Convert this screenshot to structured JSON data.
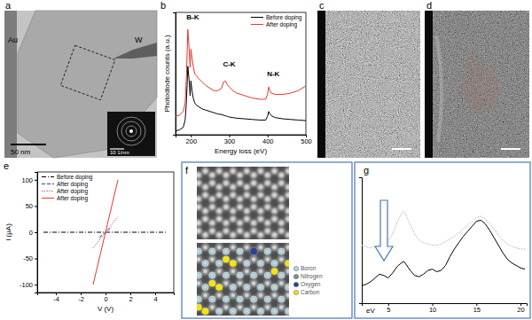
{
  "chart_data": [
    {
      "panel": "b",
      "type": "line",
      "xlabel": "Energy loss (eV)",
      "ylabel": "Photodiode counts (a.u.)",
      "xlim": [
        160,
        500
      ],
      "ylim": [
        0,
        10
      ],
      "xticks": [
        200,
        300,
        400,
        500
      ],
      "tick_labels": "x",
      "legend": "top-right",
      "grid": false,
      "x": [
        160,
        170,
        180,
        185,
        188,
        190,
        192,
        195,
        198,
        200,
        203,
        206,
        210,
        215,
        220,
        230,
        240,
        250,
        260,
        270,
        280,
        285,
        290,
        295,
        300,
        310,
        320,
        340,
        360,
        380,
        395,
        400,
        403,
        406,
        410,
        420,
        440,
        460,
        480,
        500
      ],
      "series": [
        {
          "name": "Before doping",
          "color": "#000000",
          "line_style": "solid",
          "values": [
            0.3,
            0.4,
            0.6,
            1.2,
            2.5,
            4.0,
            5.6,
            4.6,
            3.2,
            4.4,
            3.6,
            3.0,
            2.6,
            2.4,
            2.3,
            2.1,
            2.0,
            1.9,
            1.8,
            1.7,
            1.65,
            1.6,
            1.55,
            1.5,
            1.45,
            1.4,
            1.35,
            1.3,
            1.25,
            1.2,
            1.2,
            1.5,
            1.9,
            1.7,
            1.55,
            1.4,
            1.3,
            1.25,
            1.2,
            1.15
          ]
        },
        {
          "name": "After doping",
          "color": "#e8352b",
          "line_style": "solid",
          "values": [
            1.5,
            1.6,
            1.9,
            2.6,
            4.5,
            6.5,
            8.6,
            7.2,
            5.5,
            7.0,
            6.3,
            5.6,
            5.0,
            4.8,
            4.6,
            4.3,
            4.0,
            3.8,
            3.6,
            3.6,
            3.8,
            4.3,
            4.4,
            4.1,
            3.9,
            3.6,
            3.4,
            3.2,
            3.0,
            2.9,
            2.9,
            3.3,
            3.9,
            3.6,
            3.4,
            3.3,
            3.3,
            3.4,
            3.6,
            4.0
          ]
        }
      ],
      "annotations": [
        {
          "text": "B-K",
          "x": 205,
          "y": 9.4
        },
        {
          "text": "C-K",
          "x": 300,
          "y": 5.6
        },
        {
          "text": "N-K",
          "x": 415,
          "y": 4.8
        }
      ]
    },
    {
      "panel": "e",
      "type": "line",
      "xlabel": "V (V)",
      "ylabel": "I (μA)",
      "xlim": [
        -5.5,
        5.5
      ],
      "ylim": [
        -115,
        115
      ],
      "xticks": [
        -4,
        -2,
        0,
        2,
        4
      ],
      "yticks": [
        -100,
        -50,
        0,
        50,
        100
      ],
      "legend": "top-left",
      "grid": false,
      "series": [
        {
          "name": "Before doping",
          "color": "#000000",
          "line_style": "dashdot",
          "x": [
            -5,
            5
          ],
          "values": [
            0,
            0
          ]
        },
        {
          "name": "After doping",
          "color": "#3a3aa8",
          "line_style": "dashed",
          "x": [
            -0.5,
            0.5
          ],
          "values": [
            -10,
            10
          ]
        },
        {
          "name": "After doping",
          "color": "#c0306a",
          "line_style": "dotted",
          "x": [
            -1,
            1
          ],
          "values": [
            -30,
            30
          ]
        },
        {
          "name": "After doping",
          "color": "#e8352b",
          "line_style": "solid",
          "x": [
            -1,
            1
          ],
          "values": [
            -100,
            100
          ]
        }
      ]
    },
    {
      "panel": "g",
      "type": "line",
      "xlabel": "eV",
      "xlim": [
        2,
        20.7
      ],
      "ylim": [
        0,
        10
      ],
      "xticks": [
        5,
        10,
        15,
        20
      ],
      "tick_labels": "x",
      "grid": false,
      "x": [
        2,
        2.5,
        3,
        3.5,
        4,
        4.5,
        5,
        5.5,
        6,
        6.5,
        6.8,
        7,
        7.5,
        8,
        8.5,
        9,
        9.5,
        10,
        10.5,
        11,
        11.5,
        12,
        12.5,
        13,
        13.5,
        14,
        14.5,
        15,
        15.5,
        16,
        16.5,
        17,
        17.5,
        18,
        18.5,
        19,
        19.5,
        20,
        20.5
      ],
      "series": [
        {
          "color": "#a0a0a0",
          "line_style": "dotted",
          "values": [
            4.6,
            4.5,
            4.4,
            4.5,
            4.6,
            4.7,
            4.9,
            5.5,
            6.4,
            7.1,
            7.3,
            7.0,
            6.2,
            5.5,
            5.0,
            4.8,
            4.7,
            4.6,
            4.6,
            4.7,
            4.9,
            5.1,
            5.3,
            5.6,
            5.9,
            6.2,
            6.5,
            6.8,
            6.9,
            6.7,
            6.3,
            5.9,
            5.4,
            5.0,
            4.7,
            4.5,
            4.4,
            4.3,
            4.3
          ]
        },
        {
          "color": "#000000",
          "line_style": "solid",
          "values": [
            1.4,
            1.5,
            1.7,
            2.0,
            2.3,
            2.2,
            2.0,
            2.4,
            2.9,
            3.2,
            3.3,
            3.1,
            2.6,
            2.2,
            2.1,
            2.3,
            2.6,
            2.7,
            2.5,
            2.6,
            3.0,
            3.7,
            4.3,
            4.8,
            5.3,
            5.7,
            6.1,
            6.5,
            6.6,
            6.3,
            5.8,
            5.2,
            4.6,
            4.0,
            3.5,
            3.2,
            3.0,
            2.8,
            2.7
          ]
        }
      ]
    }
  ],
  "images": {
    "a": {
      "panel": "a",
      "labels": [
        "Au",
        "W"
      ],
      "scale_bar": "50 nm",
      "inset_scale_bar": "10 1/nm"
    },
    "c": {
      "panel": "c"
    },
    "d": {
      "panel": "d"
    },
    "f": {
      "panel": "f",
      "atoms": [
        {
          "name": "Boron",
          "color": "#a9d9ea"
        },
        {
          "name": "Nitrogen",
          "color": "#8a8a8a"
        },
        {
          "name": "Oxygen",
          "color": "#2b3f9e"
        },
        {
          "name": "Carbon",
          "color": "#f2e21a"
        }
      ]
    }
  }
}
